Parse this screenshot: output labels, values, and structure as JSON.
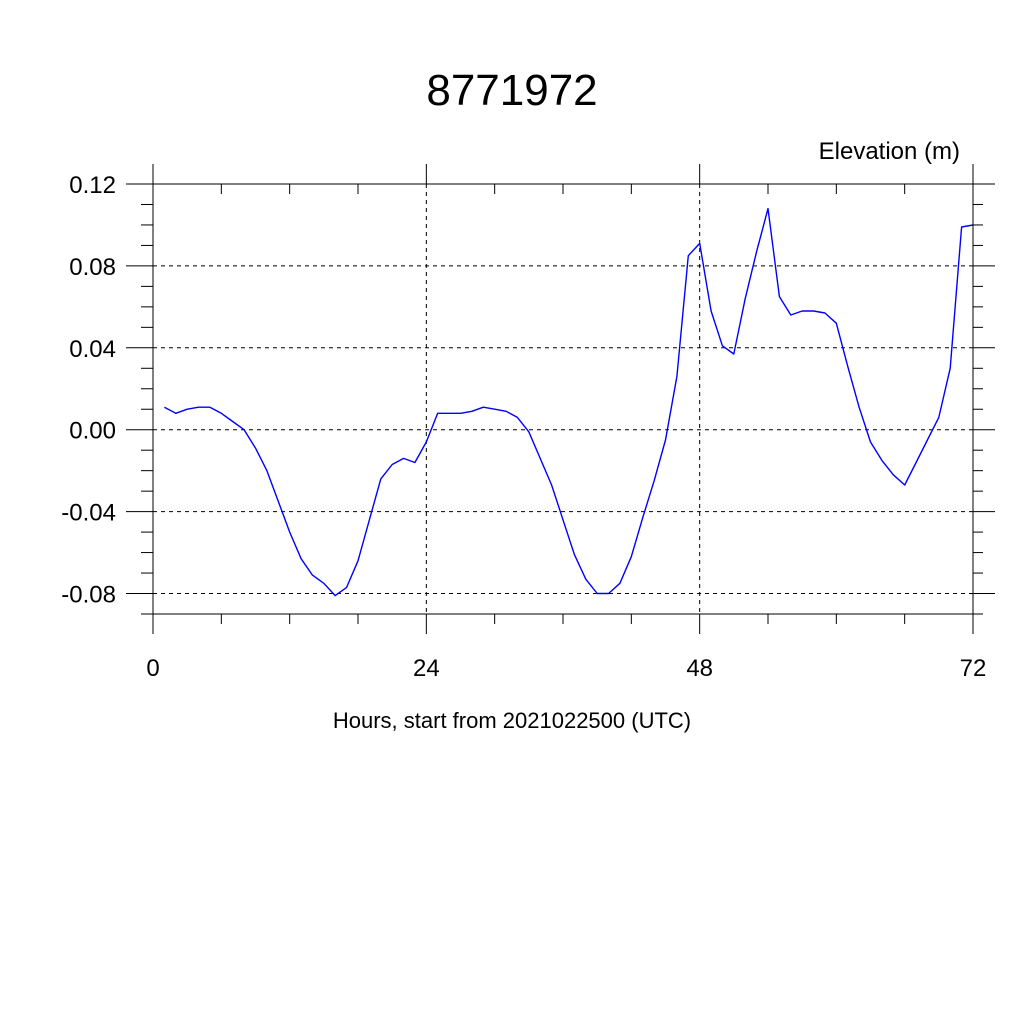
{
  "chart_data": {
    "type": "line",
    "title": "8771972",
    "ylabel": "Elevation (m)",
    "xlabel": "Hours, start from 2021022500 (UTC)",
    "xlim": [
      0,
      72
    ],
    "ylim": [
      -0.09,
      0.12
    ],
    "xticks": [
      0,
      24,
      48,
      72
    ],
    "xtick_labels": [
      "0",
      "24",
      "48",
      "72"
    ],
    "yticks": [
      -0.08,
      -0.04,
      0.0,
      0.04,
      0.08,
      0.12
    ],
    "ytick_labels": [
      "-0.08",
      "-0.04",
      "0.00",
      "0.04",
      "0.08",
      "0.12"
    ],
    "grid": true,
    "series": [
      {
        "color": "#0000ff",
        "x": [
          1,
          2,
          3,
          4,
          5,
          6,
          7,
          8,
          9,
          10,
          11,
          12,
          13,
          14,
          15,
          16,
          17,
          18,
          19,
          20,
          21,
          22,
          23,
          24,
          25,
          26,
          27,
          28,
          29,
          30,
          31,
          32,
          33,
          34,
          35,
          36,
          37,
          38,
          39,
          40,
          41,
          42,
          43,
          44,
          45,
          46,
          47,
          48,
          49,
          50,
          51,
          52,
          53,
          54,
          55,
          56,
          57,
          58,
          59,
          60,
          61,
          62,
          63,
          64,
          65,
          66,
          67,
          68,
          69,
          70,
          71,
          72
        ],
        "values": [
          0.011,
          0.008,
          0.01,
          0.011,
          0.011,
          0.008,
          0.004,
          0.0,
          -0.009,
          -0.02,
          -0.035,
          -0.05,
          -0.063,
          -0.071,
          -0.075,
          -0.081,
          -0.077,
          -0.064,
          -0.044,
          -0.024,
          -0.017,
          -0.014,
          -0.016,
          -0.006,
          0.008,
          0.008,
          0.008,
          0.009,
          0.011,
          0.01,
          0.009,
          0.006,
          -0.001,
          -0.014,
          -0.027,
          -0.044,
          -0.061,
          -0.073,
          -0.08,
          -0.08,
          -0.075,
          -0.062,
          -0.043,
          -0.025,
          -0.005,
          0.026,
          0.085,
          0.091,
          0.058,
          0.041,
          0.037,
          0.064,
          0.087,
          0.108,
          0.065,
          0.056,
          0.058,
          0.058,
          0.057,
          0.052,
          0.031,
          0.011,
          -0.006,
          -0.015,
          -0.022,
          -0.027,
          -0.016,
          -0.005,
          0.006,
          0.03,
          0.099,
          0.1
        ]
      }
    ]
  }
}
